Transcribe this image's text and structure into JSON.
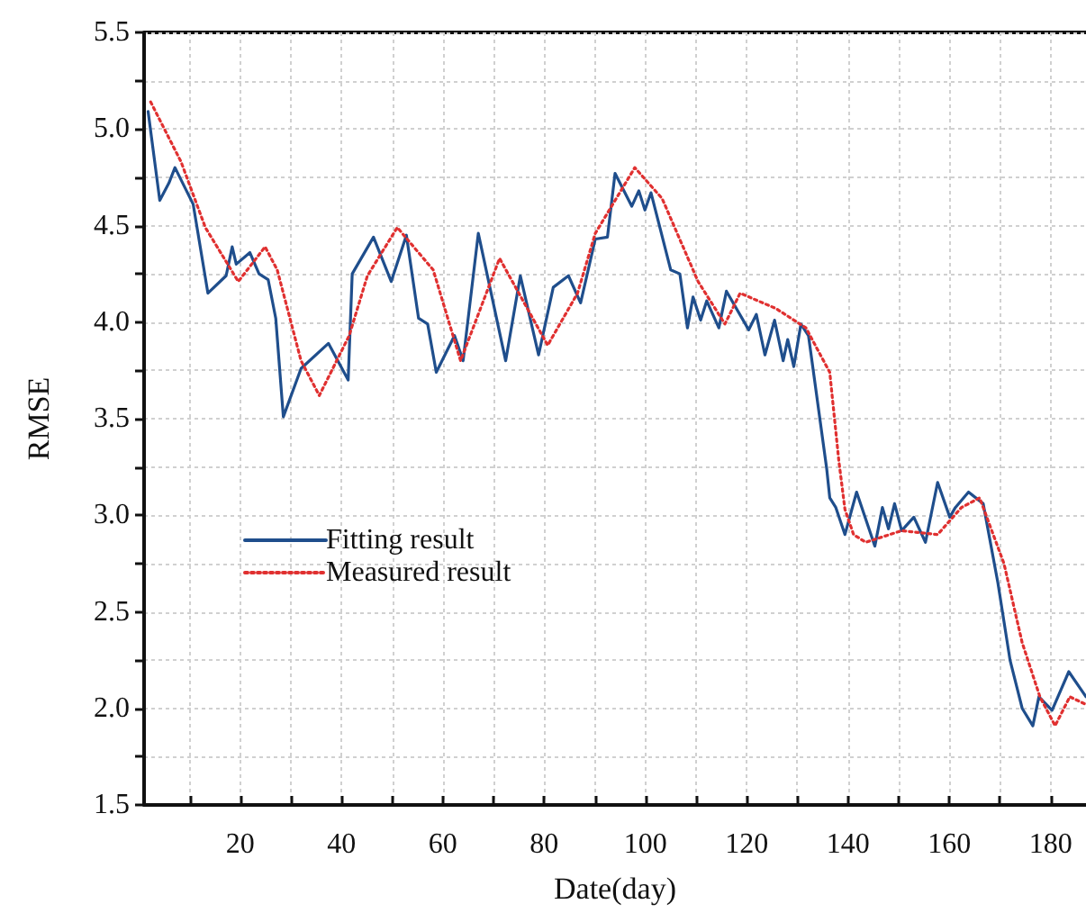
{
  "chart_data": {
    "type": "line",
    "xlabel": "Date(day)",
    "ylabel": "RMSE",
    "xlim": [
      1,
      187
    ],
    "ylim": [
      1.5,
      5.5
    ],
    "xticks": [
      {
        "value": 10,
        "label": null
      },
      20,
      {
        "value": 30,
        "label": null
      },
      40,
      {
        "value": 50,
        "label": null
      },
      60,
      {
        "value": 70,
        "label": null
      },
      80,
      {
        "value": 90,
        "label": null
      },
      100,
      {
        "value": 110,
        "label": null
      },
      120,
      {
        "value": 130,
        "label": null
      },
      140,
      {
        "value": 150,
        "label": null
      },
      160,
      {
        "value": 170,
        "label": null
      },
      180
    ],
    "yticks": [
      1.5,
      {
        "value": 1.75,
        "label": null
      },
      {
        "value": 2,
        "label": "2.0"
      },
      {
        "value": 2.25,
        "label": null
      },
      2.5,
      {
        "value": 2.75,
        "label": null
      },
      {
        "value": 3,
        "label": "3.0"
      },
      {
        "value": 3.25,
        "label": null
      },
      3.5,
      {
        "value": 3.75,
        "label": null
      },
      {
        "value": 4,
        "label": "4.0"
      },
      {
        "value": 4.25,
        "label": null
      },
      4.5,
      {
        "value": 4.75,
        "label": null
      },
      {
        "value": 5,
        "label": "5.0"
      },
      {
        "value": 5.25,
        "label": null
      },
      5.5
    ],
    "grid": true,
    "legend": "center left",
    "marker": "none",
    "series": [
      {
        "name": "Fitting result",
        "color": "#1f4e8c",
        "line_style": "solid",
        "x": [
          1.8,
          4.1,
          5.9,
          7.1,
          10.7,
          13.6,
          17.2,
          18.4,
          19.2,
          21.9,
          23.7,
          25.5,
          27,
          28.5,
          32,
          37.4,
          41.3,
          42.1,
          46.3,
          49.8,
          52.8,
          55.2,
          57,
          58.7,
          62.3,
          64,
          67,
          72.4,
          75.3,
          78.9,
          81.8,
          84.8,
          87.2,
          90.1,
          92.5,
          94,
          97.3,
          98.7,
          99.9,
          101.1,
          105,
          106.8,
          108.3,
          109.4,
          110.9,
          112.1,
          114.5,
          116,
          120.4,
          121.9,
          123.6,
          125.5,
          127.2,
          128.1,
          129.3,
          130.7,
          132.2,
          135.8,
          136.4,
          137.6,
          139.4,
          141.7,
          143.5,
          145.3,
          146.8,
          148,
          149.2,
          150.6,
          153,
          155.3,
          157.7,
          160.1,
          161.2,
          163.8,
          166.7,
          169.6,
          172,
          174.4,
          176.5,
          177.7,
          180.3,
          183.6,
          187
        ],
        "values": [
          5.09,
          4.63,
          4.72,
          4.8,
          4.61,
          4.15,
          4.24,
          4.39,
          4.3,
          4.36,
          4.25,
          4.22,
          4.02,
          3.51,
          3.76,
          3.89,
          3.7,
          4.25,
          4.44,
          4.21,
          4.45,
          4.02,
          3.99,
          3.74,
          3.93,
          3.8,
          4.46,
          3.8,
          4.24,
          3.83,
          4.18,
          4.24,
          4.1,
          4.43,
          4.44,
          4.77,
          4.6,
          4.68,
          4.58,
          4.67,
          4.27,
          4.25,
          3.97,
          4.13,
          4.01,
          4.11,
          3.97,
          4.16,
          3.96,
          4.04,
          3.83,
          4.01,
          3.8,
          3.91,
          3.77,
          3.99,
          3.93,
          3.24,
          3.09,
          3.04,
          2.9,
          3.12,
          2.98,
          2.84,
          3.04,
          2.93,
          3.06,
          2.92,
          2.99,
          2.86,
          3.17,
          2.99,
          3.04,
          3.12,
          3.06,
          2.65,
          2.25,
          2.0,
          1.91,
          2.06,
          1.99,
          2.19,
          2.06
        ]
      },
      {
        "name": "Measured result",
        "color": "#e03030",
        "line_style": "dotted",
        "x": [
          2.3,
          8.3,
          13.1,
          19.6,
          24.9,
          27.3,
          32,
          35.6,
          41.5,
          45.1,
          51,
          58.1,
          63.5,
          71.2,
          80.7,
          86.6,
          90.1,
          97.9,
          103.3,
          110.4,
          115.7,
          118.7,
          125.8,
          131.7,
          136.4,
          138.2,
          139.4,
          141.1,
          143.5,
          150.6,
          157.7,
          162.4,
          166,
          170.8,
          174.4,
          177.9,
          180.9,
          183.8,
          187
        ],
        "values": [
          5.14,
          4.83,
          4.49,
          4.21,
          4.39,
          4.27,
          3.8,
          3.62,
          3.93,
          4.24,
          4.49,
          4.27,
          3.8,
          4.33,
          3.88,
          4.15,
          4.46,
          4.8,
          4.64,
          4.21,
          3.99,
          4.15,
          4.07,
          3.97,
          3.74,
          3.28,
          3.03,
          2.9,
          2.86,
          2.92,
          2.9,
          3.04,
          3.09,
          2.75,
          2.34,
          2.06,
          1.91,
          2.06,
          2.02
        ]
      }
    ]
  }
}
